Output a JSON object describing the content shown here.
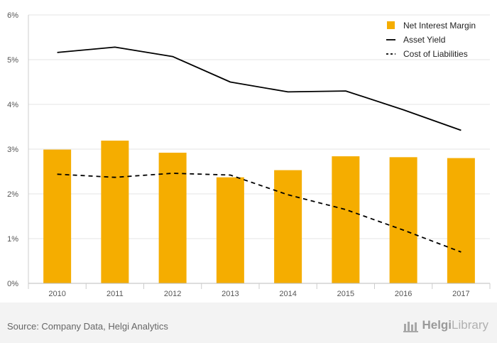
{
  "chart_data": {
    "type": "bar",
    "categories": [
      "2010",
      "2011",
      "2012",
      "2013",
      "2014",
      "2015",
      "2016",
      "2017"
    ],
    "series": [
      {
        "name": "Net Interest Margin",
        "kind": "bar",
        "color": "#f5ad00",
        "values": [
          2.99,
          3.19,
          2.92,
          2.37,
          2.53,
          2.84,
          2.82,
          2.8
        ]
      },
      {
        "name": "Asset Yield",
        "kind": "line",
        "style": "solid",
        "color": "#000000",
        "values": [
          5.16,
          5.28,
          5.07,
          4.5,
          4.28,
          4.3,
          3.88,
          3.42
        ]
      },
      {
        "name": "Cost of Liabilities",
        "kind": "line",
        "style": "dashed",
        "color": "#000000",
        "values": [
          2.44,
          2.37,
          2.46,
          2.42,
          1.98,
          1.65,
          1.19,
          0.7
        ]
      }
    ],
    "y_ticks": [
      "0%",
      "1%",
      "2%",
      "3%",
      "4%",
      "5%",
      "6%"
    ],
    "ylim": [
      0,
      6
    ],
    "grid": true,
    "legend_position": "top-right"
  },
  "footer": {
    "source": "Source: Company Data, Helgi Analytics",
    "brand_bold": "Helgi",
    "brand_light": "Library"
  }
}
